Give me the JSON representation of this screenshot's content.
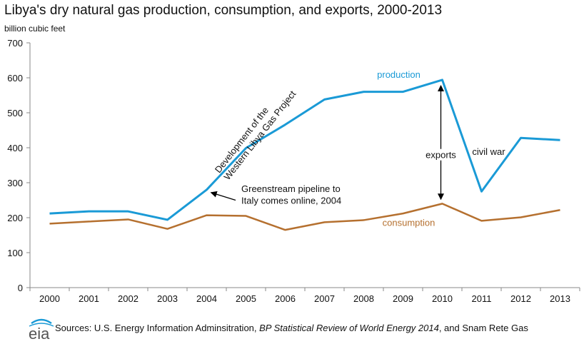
{
  "chart_data": {
    "type": "line",
    "title": "Libya's dry natural gas production, consumption, and exports, 2000-2013",
    "ylabel": "billion cubic feet",
    "xlabel": "",
    "categories": [
      "2000",
      "2001",
      "2002",
      "2003",
      "2004",
      "2005",
      "2006",
      "2007",
      "2008",
      "2009",
      "2010",
      "2011",
      "2012",
      "2013"
    ],
    "ylim": [
      0,
      700
    ],
    "yticks": [
      0,
      100,
      200,
      300,
      400,
      500,
      600,
      700
    ],
    "grid": false,
    "series": [
      {
        "name": "production",
        "color": "#1a9ad6",
        "values": [
          212,
          218,
          218,
          194,
          280,
          399,
          466,
          538,
          560,
          560,
          594,
          275,
          428,
          422
        ]
      },
      {
        "name": "consumption",
        "color": "#b5702f",
        "values": [
          183,
          189,
          195,
          168,
          207,
          205,
          165,
          187,
          193,
          212,
          240,
          191,
          201,
          222
        ]
      }
    ],
    "annotations": {
      "western_libya_line1": "Development  of the",
      "western_libya_line2": "Western Libya Gas Project",
      "greenstream_line1": "Greenstream  pipeline to",
      "greenstream_line2": "Italy comes online, 2004",
      "exports": "exports",
      "civil_war": "civil war"
    }
  },
  "source": {
    "prefix": "Sources: U.S. Energy Information Adminsitration, ",
    "italic": "BP Statistical Review  of World Energy 2014",
    "suffix": ", and Snam Rete Gas"
  },
  "logo_text": "eia",
  "colors": {
    "axis": "#888888",
    "text": "#111111"
  }
}
